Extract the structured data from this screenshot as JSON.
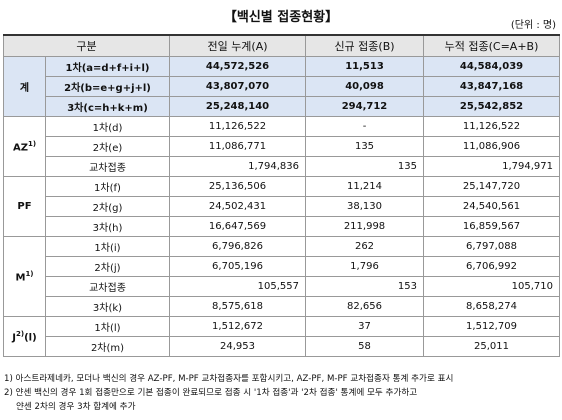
{
  "header": {
    "title": "【백신별 접종현황】",
    "unit": "(단위 : 명)"
  },
  "table": {
    "columns": [
      "구분",
      "전일 누계(A)",
      "신규 접종(B)",
      "누적 접종(C=A+B)"
    ],
    "groups": [
      {
        "name": "계",
        "highlight": true,
        "rows": [
          {
            "label": "1차(a=d+f+i+l)",
            "values": [
              "44,572,526",
              "11,513",
              "44,584,039"
            ]
          },
          {
            "label": "2차(b=e+g+j+l)",
            "values": [
              "43,807,070",
              "40,098",
              "43,847,168"
            ]
          },
          {
            "label": "3차(c=h+k+m)",
            "values": [
              "25,248,140",
              "294,712",
              "25,542,852"
            ]
          }
        ]
      },
      {
        "name": "AZ",
        "note": "1)",
        "rows": [
          {
            "label": "1차(d)",
            "values": [
              "11,126,522",
              "-",
              "11,126,522"
            ]
          },
          {
            "label": "2차(e)",
            "values": [
              "11,086,771",
              "135",
              "11,086,906"
            ]
          },
          {
            "label": "교차접종",
            "style": "cross",
            "values": [
              "1,794,836",
              "135",
              "1,794,971"
            ]
          }
        ]
      },
      {
        "name": "PF",
        "rows": [
          {
            "label": "1차(f)",
            "values": [
              "25,136,506",
              "11,214",
              "25,147,720"
            ]
          },
          {
            "label": "2차(g)",
            "values": [
              "24,502,431",
              "38,130",
              "24,540,561"
            ]
          },
          {
            "label": "3차(h)",
            "values": [
              "16,647,569",
              "211,998",
              "16,859,567"
            ]
          }
        ]
      },
      {
        "name": "M",
        "note": "1)",
        "rows": [
          {
            "label": "1차(i)",
            "values": [
              "6,796,826",
              "262",
              "6,797,088"
            ]
          },
          {
            "label": "2차(j)",
            "values": [
              "6,705,196",
              "1,796",
              "6,706,992"
            ]
          },
          {
            "label": "교차접종",
            "style": "cross",
            "values": [
              "105,557",
              "153",
              "105,710"
            ]
          },
          {
            "label": "3차(k)",
            "values": [
              "8,575,618",
              "82,656",
              "8,658,274"
            ]
          }
        ]
      },
      {
        "name": "J",
        "note": "2)",
        "suffix": "(l)",
        "rows": [
          {
            "label": "1차(l)",
            "values": [
              "1,512,672",
              "37",
              "1,512,709"
            ]
          },
          {
            "label": "2차(m)",
            "values": [
              "24,953",
              "58",
              "25,011"
            ]
          }
        ]
      }
    ]
  },
  "footnotes": [
    "1) 아스트라제네카, 모더나 백신의 경우 AZ-PF, M-PF 교차접종자를 포함시키고, AZ-PF, M-PF 교차접종자 통계 추가로 표시",
    "2) 얀센 백신의 경우 1회 접종만으로 기본 접종이 완료되므로 접종 시 '1차 접종'과 '2차 접종' 통계에 모두 추가하고",
    "얀센 2차의 경우 3차 합계에 추가"
  ]
}
